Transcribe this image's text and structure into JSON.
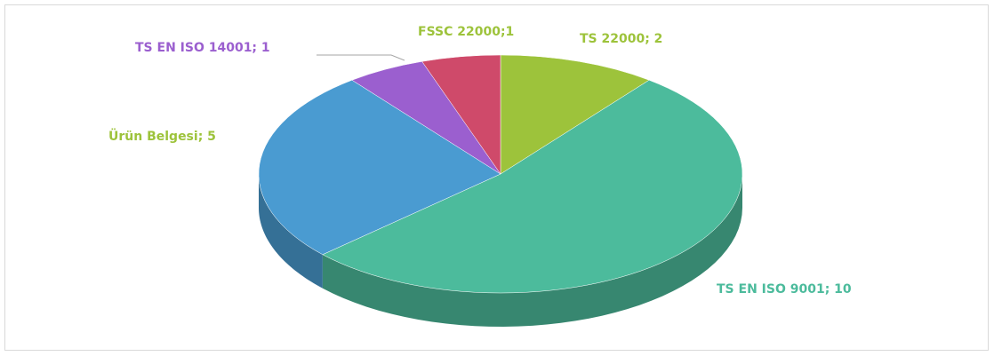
{
  "chart_data": {
    "type": "pie",
    "depth3d": true,
    "values": [
      2,
      10,
      5,
      1,
      1
    ],
    "value_labels": [
      "TS 22000; 2",
      "TS EN ISO 9001; 10",
      "Ürün Belgesi; 5",
      "TS EN ISO 14001; 1",
      "FSSC 22000;1"
    ],
    "colors": [
      "#9dc33b",
      "#4cbb9c",
      "#4a9bd1",
      "#9b5fcf",
      "#cf4a6a"
    ],
    "label_colors": [
      "#9dc33b",
      "#4cbb9c",
      "#9dc33b",
      "#9b5fcf",
      "#9dc33b"
    ]
  }
}
